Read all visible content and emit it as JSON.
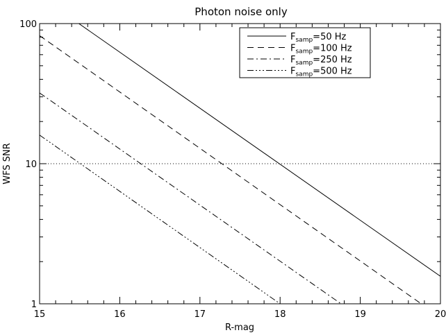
{
  "chart_data": {
    "type": "line",
    "title": "Photon noise only",
    "xlabel": "R-mag",
    "ylabel": "WFS SNR",
    "xlim": [
      15,
      20
    ],
    "ylim": [
      1,
      100
    ],
    "yscale": "log",
    "grid": false,
    "legend_position": "top-right",
    "x_ticks": [
      "15",
      "16",
      "17",
      "18",
      "19",
      "20"
    ],
    "y_ticks": [
      "1",
      "10",
      "100"
    ],
    "series": [
      {
        "name_main": "F",
        "name_sub": "samp",
        "name_rest": "=50 Hz",
        "dash": "solid",
        "x": [
          15.49,
          20
        ],
        "y": [
          100,
          1.57
        ]
      },
      {
        "name_main": "F",
        "name_sub": "samp",
        "name_rest": "=100 Hz",
        "dash": "dashed",
        "x": [
          15,
          19.76
        ],
        "y": [
          82,
          1
        ]
      },
      {
        "name_main": "F",
        "name_sub": "samp",
        "name_rest": "=250 Hz",
        "dash": "dash-dot",
        "x": [
          15,
          18.76
        ],
        "y": [
          32,
          1
        ]
      },
      {
        "name_main": "F",
        "name_sub": "samp",
        "name_rest": "=500 Hz",
        "dash": "dash-dot-dot-dot",
        "x": [
          15,
          18.0
        ],
        "y": [
          16,
          1
        ]
      }
    ],
    "reference_line": {
      "y": 10,
      "style": "dotted"
    }
  }
}
